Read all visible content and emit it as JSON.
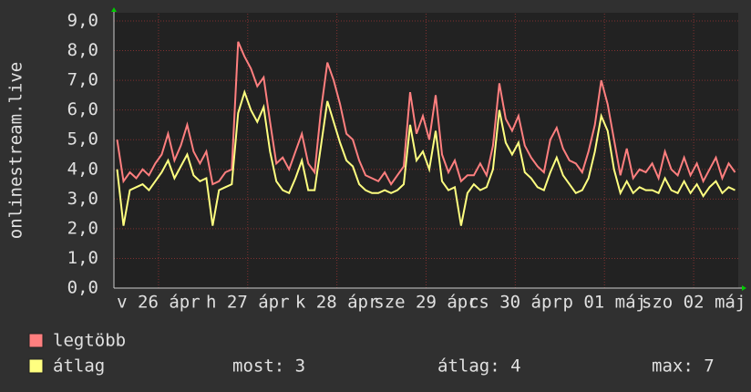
{
  "chart_data": {
    "type": "line",
    "y_label": "onlinestream.live",
    "ylim": [
      0,
      9
    ],
    "yticks": [
      {
        "value": 0,
        "label": "0,0"
      },
      {
        "value": 1,
        "label": "1,0"
      },
      {
        "value": 2,
        "label": "2,0"
      },
      {
        "value": 3,
        "label": "3,0"
      },
      {
        "value": 4,
        "label": "4,0"
      },
      {
        "value": 5,
        "label": "5,0"
      },
      {
        "value": 6,
        "label": "6,0"
      },
      {
        "value": 7,
        "label": "7,0"
      },
      {
        "value": 8,
        "label": "8,0"
      },
      {
        "value": 9,
        "label": "9,0"
      }
    ],
    "xlim": [
      -0.5,
      97.5
    ],
    "xticks": [
      {
        "value": 6.5,
        "label": "v 26 ápr"
      },
      {
        "value": 20.5,
        "label": "h 27 ápr"
      },
      {
        "value": 34.5,
        "label": "k 28 ápr"
      },
      {
        "value": 48.5,
        "label": "sze 29 ápr"
      },
      {
        "value": 62.5,
        "label": "cs 30 ápr"
      },
      {
        "value": 76.5,
        "label": "p 01 máj"
      },
      {
        "value": 90.5,
        "label": "szo 02 máj"
      }
    ],
    "grid": true,
    "series": [
      {
        "name": "legtöbb",
        "color": "#ff7f7f",
        "values": [
          5.0,
          3.6,
          3.9,
          3.7,
          4.0,
          3.8,
          4.2,
          4.5,
          5.2,
          4.3,
          4.8,
          5.5,
          4.6,
          4.2,
          4.6,
          3.5,
          3.6,
          3.9,
          4.0,
          8.3,
          7.8,
          7.4,
          6.8,
          7.1,
          5.6,
          4.2,
          4.4,
          4.0,
          4.6,
          5.2,
          4.2,
          3.9,
          6.0,
          7.6,
          7.0,
          6.2,
          5.2,
          5.0,
          4.3,
          3.8,
          3.7,
          3.6,
          3.9,
          3.5,
          3.8,
          4.1,
          6.6,
          5.2,
          5.8,
          5.0,
          6.5,
          4.5,
          3.9,
          4.3,
          3.6,
          3.8,
          3.8,
          4.2,
          3.8,
          4.8,
          6.9,
          5.7,
          5.3,
          5.8,
          4.8,
          4.4,
          4.1,
          3.9,
          5.0,
          5.4,
          4.7,
          4.3,
          4.2,
          3.9,
          4.6,
          5.5,
          7.0,
          6.2,
          5.0,
          3.8,
          4.7,
          3.7,
          4.0,
          3.9,
          4.2,
          3.7,
          4.6,
          4.0,
          3.8,
          4.4,
          3.8,
          4.2,
          3.6,
          4.0,
          4.4,
          3.7,
          4.2,
          3.9
        ]
      },
      {
        "name": "átlag",
        "color": "#ffff80",
        "values": [
          4.0,
          2.1,
          3.3,
          3.4,
          3.5,
          3.3,
          3.6,
          3.9,
          4.3,
          3.7,
          4.1,
          4.5,
          3.8,
          3.6,
          3.7,
          2.1,
          3.3,
          3.4,
          3.5,
          5.9,
          6.6,
          6.0,
          5.6,
          6.1,
          4.6,
          3.6,
          3.3,
          3.2,
          3.7,
          4.3,
          3.3,
          3.3,
          4.8,
          6.3,
          5.6,
          4.9,
          4.3,
          4.1,
          3.5,
          3.3,
          3.2,
          3.2,
          3.3,
          3.2,
          3.3,
          3.5,
          5.5,
          4.3,
          4.6,
          4.0,
          5.3,
          3.6,
          3.3,
          3.4,
          2.1,
          3.2,
          3.5,
          3.3,
          3.4,
          4.0,
          6.0,
          4.9,
          4.5,
          4.9,
          3.9,
          3.7,
          3.4,
          3.3,
          3.9,
          4.4,
          3.8,
          3.5,
          3.2,
          3.3,
          3.7,
          4.6,
          5.8,
          5.3,
          4.0,
          3.2,
          3.6,
          3.2,
          3.4,
          3.3,
          3.3,
          3.2,
          3.7,
          3.3,
          3.2,
          3.6,
          3.2,
          3.5,
          3.1,
          3.4,
          3.6,
          3.2,
          3.4,
          3.3
        ]
      }
    ],
    "stats": [
      "most: 3",
      "átlag: 4",
      "max: 7"
    ]
  }
}
